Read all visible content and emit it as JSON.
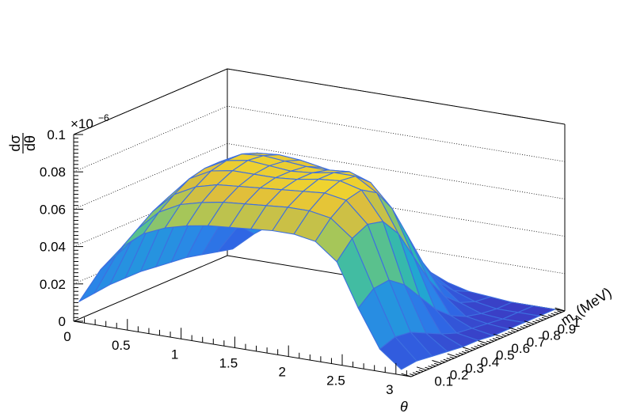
{
  "chart_data": {
    "type": "surface",
    "title": "",
    "xlabel": "θ",
    "ylabel": "m_A (MeV)",
    "ylabel_main": "m",
    "ylabel_sub": "A",
    "ylabel_unit": "(MeV)",
    "zlabel": "dσ/dθ",
    "zlabel_num": "dσ",
    "zlabel_den": "dθ",
    "z_multiplier": "×10",
    "z_multiplier_exp": "−6",
    "xlim": [
      0,
      3.14159
    ],
    "ylim": [
      0,
      1
    ],
    "zlim": [
      0,
      0.1
    ],
    "x_ticks": [
      "0",
      "0.5",
      "1",
      "1.5",
      "2",
      "2.5",
      "3"
    ],
    "y_ticks": [
      "0.1",
      "0.2",
      "0.3",
      "0.4",
      "0.5",
      "0.6",
      "0.7",
      "0.8",
      "0.9",
      "1"
    ],
    "z_ticks": [
      "0",
      "0.02",
      "0.04",
      "0.06",
      "0.08",
      "0.1"
    ],
    "x_tick_values": [
      0,
      0.5,
      1,
      1.5,
      2,
      2.5,
      3
    ],
    "y_tick_values": [
      0.1,
      0.2,
      0.3,
      0.4,
      0.5,
      0.6,
      0.7,
      0.8,
      0.9,
      1.0
    ],
    "z_tick_values": [
      0,
      0.02,
      0.04,
      0.06,
      0.08,
      0.1
    ],
    "surface_x": [
      0.05,
      0.25,
      0.45,
      0.65,
      0.85,
      1.05,
      1.25,
      1.45,
      1.65,
      1.85,
      2.05,
      2.25,
      2.45,
      2.65,
      2.85,
      3.05
    ],
    "surface_y": [
      0.0,
      0.1,
      0.2,
      0.3,
      0.4,
      0.5,
      0.6,
      0.7,
      0.8,
      0.9,
      1.0
    ],
    "surface_z": [
      [
        0.011,
        0.03,
        0.044,
        0.053,
        0.058,
        0.061,
        0.063,
        0.064,
        0.065,
        0.066,
        0.066,
        0.064,
        0.055,
        0.032,
        0.012,
        0.003
      ],
      [
        0.012,
        0.034,
        0.05,
        0.061,
        0.067,
        0.07,
        0.072,
        0.073,
        0.074,
        0.075,
        0.075,
        0.073,
        0.064,
        0.039,
        0.015,
        0.004
      ],
      [
        0.013,
        0.038,
        0.056,
        0.067,
        0.073,
        0.076,
        0.077,
        0.078,
        0.079,
        0.08,
        0.081,
        0.079,
        0.068,
        0.04,
        0.014,
        0.003
      ],
      [
        0.013,
        0.04,
        0.06,
        0.072,
        0.078,
        0.08,
        0.08,
        0.08,
        0.081,
        0.083,
        0.084,
        0.081,
        0.066,
        0.034,
        0.01,
        0.002
      ],
      [
        0.013,
        0.041,
        0.062,
        0.074,
        0.08,
        0.082,
        0.081,
        0.08,
        0.081,
        0.083,
        0.083,
        0.076,
        0.056,
        0.024,
        0.006,
        0.001
      ],
      [
        0.012,
        0.04,
        0.061,
        0.074,
        0.08,
        0.081,
        0.08,
        0.079,
        0.079,
        0.08,
        0.076,
        0.064,
        0.04,
        0.014,
        0.003,
        0.001
      ],
      [
        0.011,
        0.038,
        0.058,
        0.071,
        0.077,
        0.078,
        0.077,
        0.075,
        0.073,
        0.07,
        0.062,
        0.046,
        0.024,
        0.007,
        0.002,
        0.0
      ],
      [
        0.01,
        0.034,
        0.053,
        0.065,
        0.071,
        0.072,
        0.07,
        0.066,
        0.061,
        0.054,
        0.043,
        0.028,
        0.012,
        0.003,
        0.001,
        0.0
      ],
      [
        0.008,
        0.029,
        0.045,
        0.056,
        0.061,
        0.062,
        0.059,
        0.053,
        0.046,
        0.037,
        0.026,
        0.014,
        0.005,
        0.001,
        0.0,
        0.0
      ],
      [
        0.006,
        0.022,
        0.035,
        0.043,
        0.047,
        0.047,
        0.044,
        0.038,
        0.03,
        0.022,
        0.013,
        0.006,
        0.002,
        0.0,
        0.0,
        0.0
      ],
      [
        0.004,
        0.014,
        0.022,
        0.027,
        0.029,
        0.029,
        0.026,
        0.021,
        0.016,
        0.01,
        0.005,
        0.002,
        0.001,
        0.0,
        0.0,
        0.0
      ]
    ],
    "colormap": [
      "#3a3ec5",
      "#2f63e4",
      "#2b84e8",
      "#20a3d6",
      "#2ab7b6",
      "#5cc18c",
      "#a5c65a",
      "#e0bd3b",
      "#f5dc2a"
    ],
    "grid": true,
    "frame_color": "#000000",
    "mesh_color": "#3d6fe0"
  }
}
